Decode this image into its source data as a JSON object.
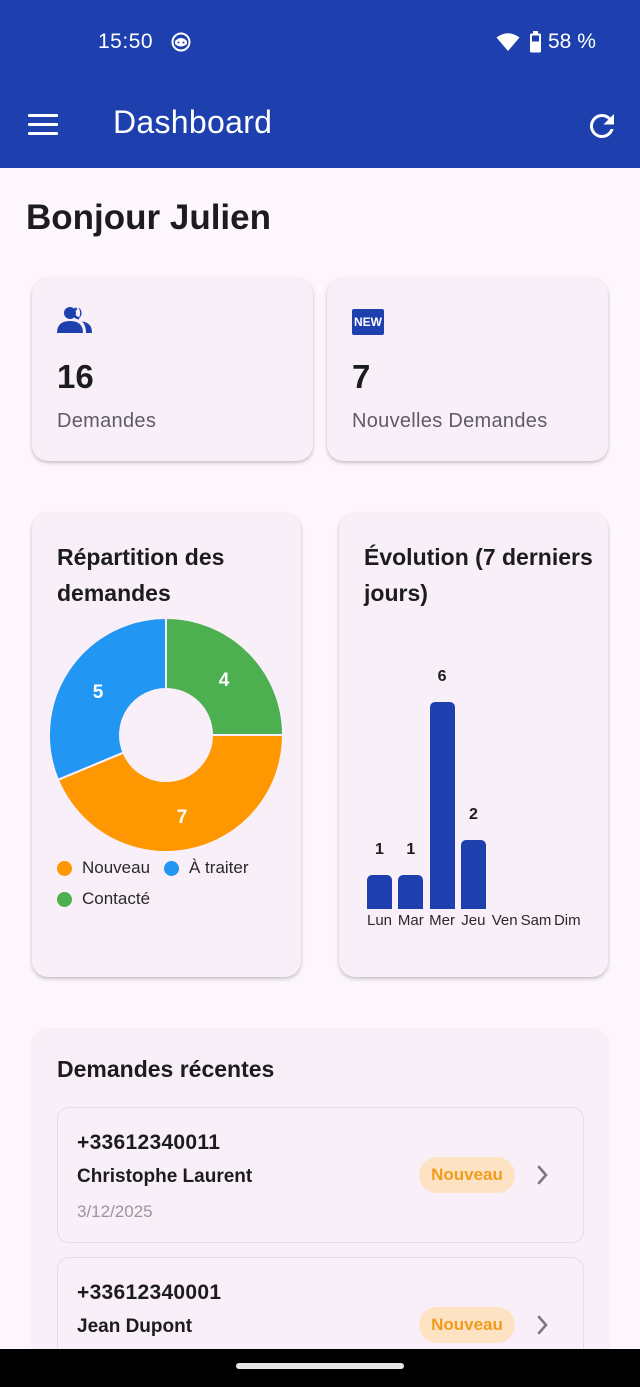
{
  "status_bar": {
    "time": "15:50",
    "notification_icon": "face-icon",
    "wifi_icon": "wifi-icon",
    "battery_icon": "battery-icon",
    "battery_percent": "58 %"
  },
  "app_bar": {
    "menu_icon": "hamburger-menu-icon",
    "title": "Dashboard",
    "refresh_icon": "refresh-icon",
    "background_color": "#1e40af"
  },
  "greeting": "Bonjour Julien",
  "stats": [
    {
      "icon": "people-icon",
      "value": "16",
      "label": "Demandes"
    },
    {
      "icon": "new-badge-icon",
      "icon_text": "NEW",
      "value": "7",
      "label": "Nouvelles Demandes"
    }
  ],
  "charts": {
    "distribution": {
      "title": "Répartition des demandes",
      "legend": [
        {
          "label": "Nouveau",
          "color": "#ff9800"
        },
        {
          "label": "À traiter",
          "color": "#2196f3"
        },
        {
          "label": "Contacté",
          "color": "#4caf50"
        }
      ]
    },
    "evolution": {
      "title": "Évolution (7 derniers jours)",
      "bar_color": "#1e40af"
    }
  },
  "chart_data": [
    {
      "type": "pie",
      "title": "Répartition des demandes",
      "categories": [
        "Nouveau",
        "À traiter",
        "Contacté"
      ],
      "values": [
        7,
        5,
        4
      ],
      "colors": [
        "#ff9800",
        "#2196f3",
        "#4caf50"
      ],
      "donut": true,
      "legend_position": "bottom"
    },
    {
      "type": "bar",
      "title": "Évolution (7 derniers jours)",
      "categories": [
        "Lun",
        "Mar",
        "Mer",
        "Jeu",
        "Ven",
        "Sam",
        "Dim"
      ],
      "values": [
        1,
        1,
        6,
        2,
        0,
        0,
        0
      ],
      "value_labels": [
        "1",
        "1",
        "6",
        "2",
        "",
        "",
        ""
      ],
      "xlabel": "",
      "ylabel": "",
      "ylim": [
        0,
        6
      ],
      "grid": false
    }
  ],
  "recent": {
    "title": "Demandes récentes",
    "items": [
      {
        "phone": "+33612340011",
        "name": "Christophe Laurent",
        "date": "3/12/2025",
        "status": "Nouveau",
        "chevron_icon": "chevron-right-icon"
      },
      {
        "phone": "+33612340001",
        "name": "Jean Dupont",
        "date": "",
        "status": "Nouveau",
        "chevron_icon": "chevron-right-icon"
      }
    ]
  }
}
